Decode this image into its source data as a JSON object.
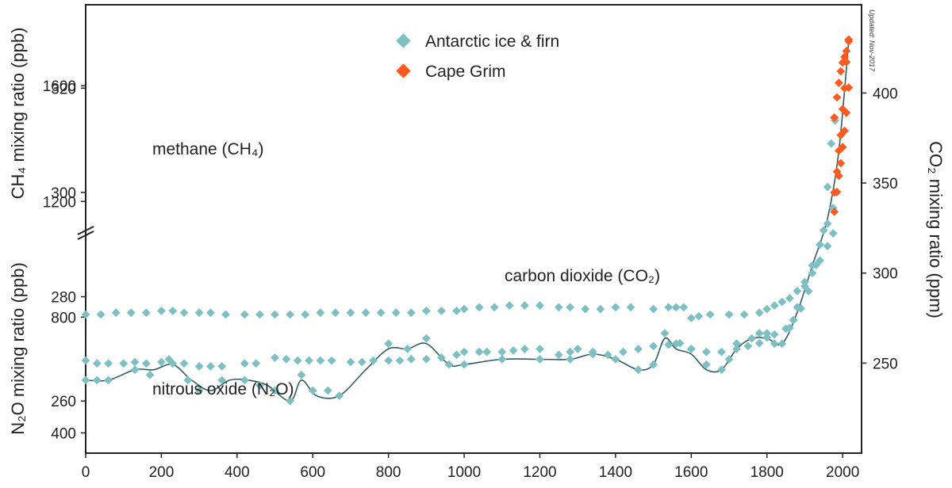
{
  "colors": {
    "ice": "#7ec0c2",
    "grim": "#ff5a1f",
    "n2o_line": "#2f5d63",
    "axis": "#222222"
  },
  "updated_note": "Updated: Nov-2017",
  "chart_data": {
    "type": "scatter",
    "x_axis": {
      "range": [
        0,
        2050
      ],
      "ticks": [
        0,
        200,
        400,
        600,
        800,
        1000,
        1200,
        1400,
        1600,
        1800,
        2000
      ]
    },
    "axes": {
      "ch4": {
        "label": "CH₄ mixing ratio (ppb)",
        "range": [
          330,
          1880
        ],
        "ticks": [
          400,
          800,
          1200,
          1600
        ]
      },
      "n2o": {
        "label": "N₂O mixing ratio (ppb)",
        "range": [
          250,
          336
        ],
        "ticks": [
          260,
          280,
          300,
          320
        ]
      },
      "co2": {
        "label": "CO₂ mixing ratio (ppm)",
        "range": [
          200,
          449
        ],
        "ticks": [
          250,
          300,
          350,
          400
        ]
      }
    },
    "legend": {
      "placement": "top-center",
      "entries": [
        "Antarctic ice & firn",
        "Cape Grim"
      ]
    },
    "series_labels": {
      "ch4": "methane (CH₄)",
      "co2": "carbon dioxide (CO₂)",
      "n2o": "nitrous oxide (N₂O)"
    },
    "series": [
      {
        "name": "Antarctic ice & firn",
        "gas": "ch4",
        "points": [
          [
            0,
            650
          ],
          [
            30,
            640
          ],
          [
            60,
            640
          ],
          [
            100,
            640
          ],
          [
            130,
            645
          ],
          [
            160,
            640
          ],
          [
            200,
            645
          ],
          [
            230,
            640
          ],
          [
            260,
            640
          ],
          [
            300,
            630
          ],
          [
            330,
            630
          ],
          [
            360,
            630
          ],
          [
            420,
            640
          ],
          [
            450,
            640
          ],
          [
            500,
            660
          ],
          [
            530,
            655
          ],
          [
            560,
            650
          ],
          [
            590,
            650
          ],
          [
            620,
            650
          ],
          [
            650,
            650
          ],
          [
            700,
            645
          ],
          [
            730,
            645
          ],
          [
            760,
            650
          ],
          [
            800,
            650
          ],
          [
            830,
            650
          ],
          [
            860,
            655
          ],
          [
            900,
            655
          ],
          [
            940,
            660
          ],
          [
            980,
            670
          ],
          [
            1000,
            680
          ],
          [
            1040,
            680
          ],
          [
            1060,
            680
          ],
          [
            1100,
            680
          ],
          [
            1130,
            685
          ],
          [
            1160,
            690
          ],
          [
            1200,
            690
          ],
          [
            1250,
            670
          ],
          [
            1280,
            680
          ],
          [
            1300,
            690
          ],
          [
            1340,
            680
          ],
          [
            1380,
            670
          ],
          [
            1420,
            680
          ],
          [
            1460,
            690
          ],
          [
            1500,
            700
          ],
          [
            1540,
            705
          ],
          [
            1570,
            710
          ],
          [
            1600,
            690
          ],
          [
            1640,
            680
          ],
          [
            1680,
            680
          ],
          [
            1720,
            690
          ],
          [
            1750,
            700
          ],
          [
            1780,
            710
          ],
          [
            1800,
            730
          ],
          [
            1820,
            740
          ],
          [
            1850,
            760
          ],
          [
            1870,
            790
          ],
          [
            1890,
            830
          ],
          [
            1910,
            890
          ],
          [
            1930,
            980
          ],
          [
            1950,
            1100
          ],
          [
            1960,
            1250
          ],
          [
            1970,
            1400
          ],
          [
            1980,
            1480
          ]
        ]
      },
      {
        "name": "Antarctic ice & firn",
        "gas": "co2",
        "points": [
          [
            0,
            277
          ],
          [
            40,
            277
          ],
          [
            80,
            278
          ],
          [
            120,
            278
          ],
          [
            160,
            278
          ],
          [
            200,
            279
          ],
          [
            230,
            279
          ],
          [
            260,
            278
          ],
          [
            300,
            278
          ],
          [
            330,
            278
          ],
          [
            370,
            277
          ],
          [
            420,
            277
          ],
          [
            460,
            277
          ],
          [
            500,
            277
          ],
          [
            540,
            277
          ],
          [
            580,
            277
          ],
          [
            620,
            278
          ],
          [
            660,
            278
          ],
          [
            700,
            278
          ],
          [
            740,
            278
          ],
          [
            780,
            278
          ],
          [
            820,
            278
          ],
          [
            860,
            278
          ],
          [
            900,
            279
          ],
          [
            940,
            279
          ],
          [
            980,
            279
          ],
          [
            1000,
            280
          ],
          [
            1040,
            281
          ],
          [
            1080,
            281
          ],
          [
            1120,
            282
          ],
          [
            1160,
            282
          ],
          [
            1200,
            282
          ],
          [
            1250,
            281
          ],
          [
            1280,
            281
          ],
          [
            1320,
            280
          ],
          [
            1360,
            280
          ],
          [
            1400,
            281
          ],
          [
            1440,
            281
          ],
          [
            1500,
            280
          ],
          [
            1540,
            281
          ],
          [
            1560,
            281
          ],
          [
            1580,
            281
          ],
          [
            1600,
            275
          ],
          [
            1620,
            276
          ],
          [
            1650,
            277
          ],
          [
            1700,
            277
          ],
          [
            1740,
            277
          ],
          [
            1780,
            278
          ],
          [
            1800,
            280
          ],
          [
            1820,
            282
          ],
          [
            1840,
            284
          ],
          [
            1860,
            286
          ],
          [
            1880,
            290
          ],
          [
            1900,
            295
          ],
          [
            1920,
            300
          ],
          [
            1940,
            307
          ],
          [
            1960,
            315
          ],
          [
            1975,
            322
          ]
        ]
      },
      {
        "name": "Antarctic ice & firn",
        "gas": "n2o",
        "points": [
          [
            0,
            264
          ],
          [
            30,
            264
          ],
          [
            60,
            264
          ],
          [
            130,
            266
          ],
          [
            170,
            265
          ],
          [
            220,
            268
          ],
          [
            270,
            264
          ],
          [
            300,
            262
          ],
          [
            360,
            264
          ],
          [
            420,
            264
          ],
          [
            460,
            263
          ],
          [
            500,
            262
          ],
          [
            540,
            260
          ],
          [
            570,
            265
          ],
          [
            600,
            262
          ],
          [
            640,
            262
          ],
          [
            670,
            261
          ],
          [
            800,
            271
          ],
          [
            850,
            270
          ],
          [
            900,
            272
          ],
          [
            960,
            267
          ],
          [
            1000,
            267
          ],
          [
            1100,
            268
          ],
          [
            1200,
            268
          ],
          [
            1280,
            268
          ],
          [
            1340,
            269
          ],
          [
            1400,
            268
          ],
          [
            1460,
            266
          ],
          [
            1500,
            267
          ],
          [
            1530,
            273
          ],
          [
            1560,
            271
          ],
          [
            1600,
            270
          ],
          [
            1640,
            267
          ],
          [
            1680,
            266
          ],
          [
            1700,
            268
          ],
          [
            1720,
            271
          ],
          [
            1760,
            272
          ],
          [
            1780,
            273
          ],
          [
            1800,
            273
          ],
          [
            1820,
            271
          ],
          [
            1840,
            271
          ],
          [
            1860,
            274
          ],
          [
            1880,
            278
          ],
          [
            1900,
            282
          ],
          [
            1920,
            286
          ],
          [
            1940,
            290
          ],
          [
            1960,
            294
          ],
          [
            1975,
            297
          ]
        ]
      },
      {
        "name": "Cape Grim",
        "gas": "ch4",
        "points": [
          [
            1978,
            1490
          ],
          [
            1985,
            1560
          ],
          [
            1990,
            1610
          ],
          [
            1995,
            1650
          ],
          [
            2000,
            1680
          ],
          [
            2005,
            1700
          ],
          [
            2010,
            1720
          ],
          [
            2016,
            1760
          ]
        ]
      },
      {
        "name": "Cape Grim",
        "gas": "co2",
        "points": [
          [
            1978,
            334
          ],
          [
            1985,
            345
          ],
          [
            1990,
            354
          ],
          [
            1995,
            361
          ],
          [
            2000,
            370
          ],
          [
            2005,
            379
          ],
          [
            2010,
            389
          ],
          [
            2016,
            403
          ]
        ]
      },
      {
        "name": "Cape Grim",
        "gas": "n2o",
        "points": [
          [
            1978,
            300
          ],
          [
            1985,
            304
          ],
          [
            1990,
            308
          ],
          [
            1995,
            311
          ],
          [
            2000,
            316
          ],
          [
            2005,
            320
          ],
          [
            2010,
            325
          ],
          [
            2016,
            329
          ]
        ]
      }
    ],
    "n2o_trend": {
      "points": [
        [
          0,
          264
        ],
        [
          60,
          264
        ],
        [
          130,
          266
        ],
        [
          180,
          266
        ],
        [
          230,
          267
        ],
        [
          280,
          264
        ],
        [
          330,
          262
        ],
        [
          380,
          264
        ],
        [
          430,
          264
        ],
        [
          480,
          263
        ],
        [
          540,
          260
        ],
        [
          570,
          264
        ],
        [
          610,
          261
        ],
        [
          670,
          261
        ],
        [
          740,
          266
        ],
        [
          800,
          270
        ],
        [
          850,
          270
        ],
        [
          900,
          271
        ],
        [
          960,
          267
        ],
        [
          1000,
          267
        ],
        [
          1100,
          268
        ],
        [
          1200,
          268
        ],
        [
          1280,
          268
        ],
        [
          1340,
          269
        ],
        [
          1400,
          268
        ],
        [
          1460,
          266
        ],
        [
          1500,
          267
        ],
        [
          1530,
          272
        ],
        [
          1560,
          270
        ],
        [
          1600,
          269
        ],
        [
          1640,
          266
        ],
        [
          1680,
          266
        ],
        [
          1720,
          270
        ],
        [
          1760,
          272
        ],
        [
          1800,
          272
        ],
        [
          1840,
          271
        ],
        [
          1880,
          277
        ],
        [
          1920,
          286
        ],
        [
          1960,
          295
        ],
        [
          1990,
          308
        ],
        [
          2016,
          329
        ]
      ]
    }
  }
}
